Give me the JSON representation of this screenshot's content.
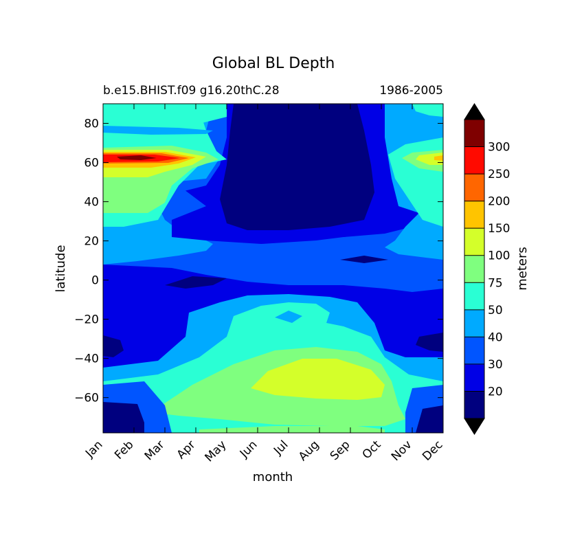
{
  "chart_data": {
    "type": "contour",
    "title": "Global BL Depth",
    "subtitle_left": "b.e15.BHIST.f09 g16.20thC.28",
    "subtitle_right": "1986-2005",
    "xlabel": "month",
    "ylabel": "latitude",
    "x_ticks": [
      "Jan",
      "Feb",
      "Mar",
      "Apr",
      "May",
      "Jun",
      "Jul",
      "Aug",
      "Sep",
      "Oct",
      "Nov",
      "Dec"
    ],
    "y_ticks": [
      80,
      60,
      40,
      20,
      0,
      -20,
      -40,
      -60
    ],
    "ylim": [
      -78,
      90
    ],
    "colorbar": {
      "label": "meters",
      "levels": [
        20,
        30,
        40,
        50,
        75,
        100,
        150,
        200,
        250,
        300
      ],
      "tick_labels": [
        "20",
        "30",
        "40",
        "50",
        "75",
        "100",
        "150",
        "200",
        "250",
        "300"
      ],
      "colors": [
        "#00007f",
        "#0000e6",
        "#0055ff",
        "#00aaff",
        "#2affd4",
        "#7fff7f",
        "#d4ff2a",
        "#ffc400",
        "#ff6600",
        "#ff0a00",
        "#7f0000"
      ],
      "extend": "both",
      "under_color": "#000000",
      "over_color": "#000000"
    },
    "field_description_note": "",
    "grid": false
  }
}
